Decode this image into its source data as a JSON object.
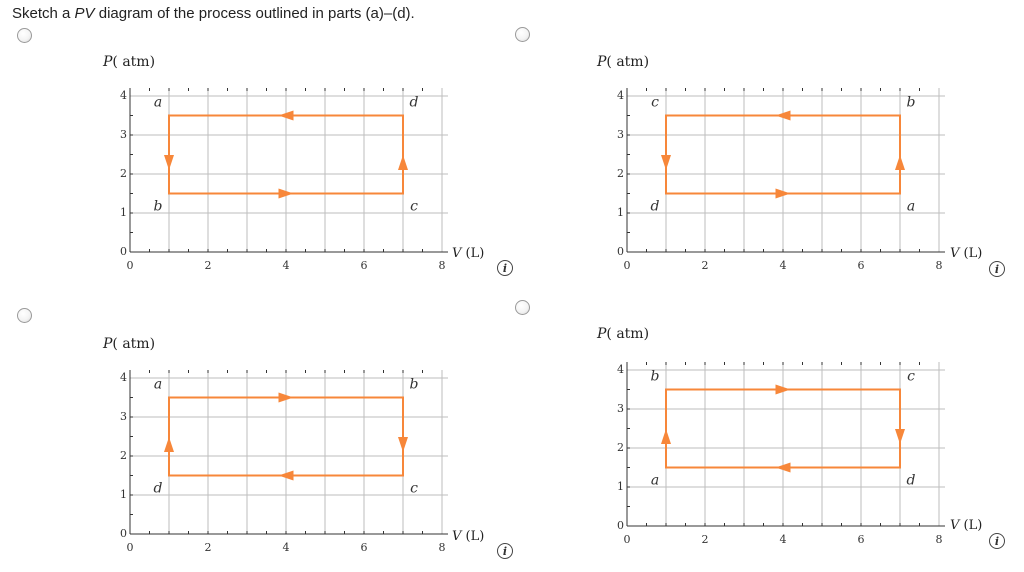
{
  "question": {
    "prefix": "Sketch a ",
    "pv": "PV",
    "suffix": " diagram of the process outlined in parts (a)–(d)."
  },
  "colors": {
    "cycle": "#f7873a",
    "grid": "#bdbdbd",
    "axis": "#333333",
    "point_label": "#333333"
  },
  "icons": {
    "info": "info-icon",
    "radio": "radio-button-icon"
  },
  "options": [
    {
      "p_label": "P",
      "p_unit": "( atm)",
      "v_label": "V",
      "v_unit": "(L)",
      "x_ticks": [
        "0",
        "2",
        "4",
        "6",
        "8"
      ],
      "y_ticks": [
        "0",
        "1",
        "2",
        "3",
        "4"
      ],
      "corners": {
        "top_left": "a",
        "top_right": "d",
        "bottom_left": "b",
        "bottom_right": "c"
      },
      "arrows": {
        "top": "left",
        "bottom": "right",
        "left": "down",
        "right": "up"
      }
    },
    {
      "p_label": "P",
      "p_unit": "( atm)",
      "v_label": "V",
      "v_unit": "(L)",
      "x_ticks": [
        "0",
        "2",
        "4",
        "6",
        "8"
      ],
      "y_ticks": [
        "0",
        "1",
        "2",
        "3",
        "4"
      ],
      "corners": {
        "top_left": "c",
        "top_right": "b",
        "bottom_left": "d",
        "bottom_right": "a"
      },
      "arrows": {
        "top": "left",
        "bottom": "right",
        "left": "down",
        "right": "up"
      }
    },
    {
      "p_label": "P",
      "p_unit": "( atm)",
      "v_label": "V",
      "v_unit": "(L)",
      "x_ticks": [
        "0",
        "2",
        "4",
        "6",
        "8"
      ],
      "y_ticks": [
        "0",
        "1",
        "2",
        "3",
        "4"
      ],
      "corners": {
        "top_left": "a",
        "top_right": "b",
        "bottom_left": "d",
        "bottom_right": "c"
      },
      "arrows": {
        "top": "right",
        "bottom": "left",
        "left": "up",
        "right": "down"
      }
    },
    {
      "p_label": "P",
      "p_unit": "( atm)",
      "v_label": "V",
      "v_unit": "(L)",
      "x_ticks": [
        "0",
        "2",
        "4",
        "6",
        "8"
      ],
      "y_ticks": [
        "0",
        "1",
        "2",
        "3",
        "4"
      ],
      "corners": {
        "top_left": "b",
        "top_right": "c",
        "bottom_left": "a",
        "bottom_right": "d"
      },
      "arrows": {
        "top": "right",
        "bottom": "left",
        "left": "up",
        "right": "down"
      }
    }
  ],
  "cycle": {
    "v_min": 1,
    "v_max": 7,
    "p_min": 1.5,
    "p_max": 3.5
  },
  "axes": {
    "v_range": [
      0,
      8
    ],
    "p_range": [
      0,
      4
    ],
    "v_grid_step": 1,
    "p_grid_step": 1
  }
}
